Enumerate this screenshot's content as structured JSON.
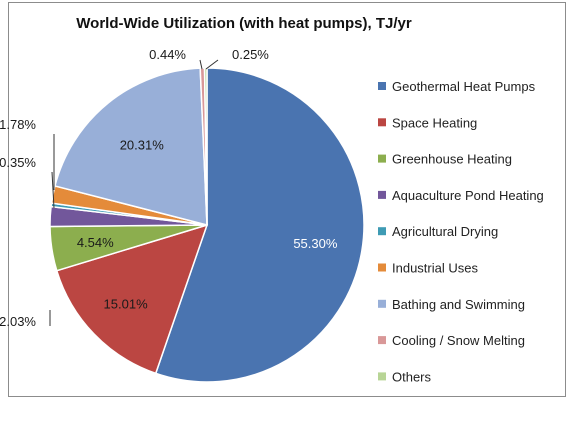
{
  "chart_data": {
    "type": "pie",
    "title": "World-Wide Utilization (with heat pumps), TJ/yr",
    "series": [
      {
        "name": "Geothermal Heat Pumps",
        "value": 55.3,
        "label": "55.30%",
        "color": "#4a74b0"
      },
      {
        "name": "Space Heating",
        "value": 15.01,
        "label": "15.01%",
        "color": "#bb4642"
      },
      {
        "name": "Greenhouse Heating",
        "value": 4.54,
        "label": "4.54%",
        "color": "#8cae4e"
      },
      {
        "name": "Aquaculture Pond Heating",
        "value": 2.03,
        "label": "2.03%",
        "color": "#72579b"
      },
      {
        "name": "Agricultural Drying",
        "value": 0.35,
        "label": "0.35%",
        "color": "#3e9bb4"
      },
      {
        "name": "Industrial Uses",
        "value": 1.78,
        "label": "1.78%",
        "color": "#e48b3a"
      },
      {
        "name": "Bathing and Swimming",
        "value": 20.31,
        "label": "20.31%",
        "color": "#98afd8"
      },
      {
        "name": "Cooling / Snow Melting",
        "value": 0.44,
        "label": "0.44%",
        "color": "#d99898"
      },
      {
        "name": "Others",
        "value": 0.25,
        "label": "0.25%",
        "color": "#b8d596"
      }
    ],
    "legend_position": "right"
  }
}
